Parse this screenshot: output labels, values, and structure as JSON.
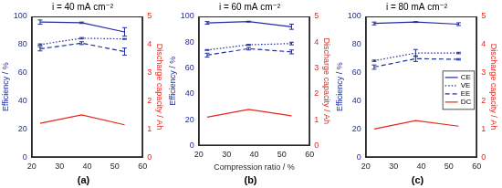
{
  "chart_data": [
    {
      "type": "line",
      "title": "i = 40 mA cm⁻²",
      "panel_label": "(a)",
      "y_label": "Efficiency / %",
      "y2_label": "Discharge capacity / Ah",
      "x": [
        23,
        38,
        53.5
      ],
      "xlim": [
        20,
        60
      ],
      "xticks": [
        20,
        30,
        40,
        50,
        60
      ],
      "ylim": [
        0,
        100
      ],
      "yticks": [
        0,
        20,
        40,
        60,
        80,
        100
      ],
      "y2lim": [
        0,
        5
      ],
      "y2ticks": [
        0,
        1,
        2,
        3,
        4,
        5
      ],
      "grid": false,
      "series": [
        {
          "name": "CE",
          "color": "#1f2e9e",
          "line_style": "solid",
          "values": [
            96,
            95.5,
            89
          ],
          "errors": [
            1.5,
            0.5,
            3
          ]
        },
        {
          "name": "VE",
          "color": "#1f2e9e",
          "line_style": "dotted",
          "values": [
            80,
            84.5,
            84
          ],
          "errors": [
            0.5,
            0.5,
            0.3
          ]
        },
        {
          "name": "EE",
          "color": "#1f2e9e",
          "line_style": "dashed",
          "values": [
            77,
            81,
            75
          ],
          "errors": [
            1.5,
            1,
            2.5
          ]
        },
        {
          "name": "DC",
          "color": "#e8261e",
          "line_style": "solid",
          "axis": "y2",
          "values": [
            1.2,
            1.5,
            1.15
          ]
        }
      ]
    },
    {
      "type": "line",
      "title": "i = 60 mA cm⁻²",
      "panel_label": "(b)",
      "x_label": "Compression ratio / %",
      "y_label": "Efficiency / %",
      "y2_label": "Discharge capacity / Ah",
      "x": [
        23,
        38,
        53.5
      ],
      "xlim": [
        20,
        60
      ],
      "xticks": [
        20,
        30,
        40,
        50,
        60
      ],
      "ylim": [
        0,
        100
      ],
      "yticks": [
        0,
        20,
        40,
        60,
        80,
        100
      ],
      "y2lim": [
        0,
        5
      ],
      "y2ticks": [
        0,
        1,
        2,
        3,
        4,
        5
      ],
      "grid": false,
      "series": [
        {
          "name": "CE",
          "color": "#1f2e9e",
          "line_style": "solid",
          "values": [
            95,
            96,
            92
          ],
          "errors": [
            1,
            0.3,
            2
          ]
        },
        {
          "name": "VE",
          "color": "#1f2e9e",
          "line_style": "dotted",
          "values": [
            74,
            78,
            79
          ],
          "errors": [
            0.3,
            0.3,
            1
          ]
        },
        {
          "name": "EE",
          "color": "#1f2e9e",
          "line_style": "dashed",
          "values": [
            70,
            75,
            72.5
          ],
          "errors": [
            1.5,
            1,
            1.5
          ]
        },
        {
          "name": "DC",
          "color": "#e8261e",
          "line_style": "solid",
          "axis": "y2",
          "values": [
            1.1,
            1.4,
            1.15
          ]
        }
      ]
    },
    {
      "type": "line",
      "title": "i = 80 mA cm⁻²",
      "panel_label": "(c)",
      "y_label": "Efficiency / %",
      "y2_label": "Discharge capacity / Ah",
      "x": [
        23,
        38,
        53.5
      ],
      "xlim": [
        20,
        60
      ],
      "xticks": [
        20,
        30,
        40,
        50,
        60
      ],
      "ylim": [
        0,
        100
      ],
      "yticks": [
        0,
        20,
        40,
        60,
        80,
        100
      ],
      "y2lim": [
        0,
        5
      ],
      "y2ticks": [
        0,
        1,
        2,
        3,
        4,
        5
      ],
      "grid": false,
      "legend": "right",
      "series": [
        {
          "name": "CE",
          "color": "#1f2e9e",
          "line_style": "solid",
          "values": [
            95,
            96,
            94.5
          ],
          "errors": [
            1,
            0.3,
            1
          ]
        },
        {
          "name": "VE",
          "color": "#1f2e9e",
          "line_style": "dotted",
          "values": [
            68.5,
            74,
            74
          ],
          "errors": [
            0.5,
            2.5,
            0.5
          ]
        },
        {
          "name": "EE",
          "color": "#1f2e9e",
          "line_style": "dashed",
          "values": [
            64,
            70,
            69.5
          ],
          "errors": [
            1.5,
            2,
            0.5
          ]
        },
        {
          "name": "DC",
          "color": "#e8261e",
          "line_style": "solid",
          "axis": "y2",
          "values": [
            1.0,
            1.3,
            1.1
          ]
        }
      ]
    }
  ]
}
